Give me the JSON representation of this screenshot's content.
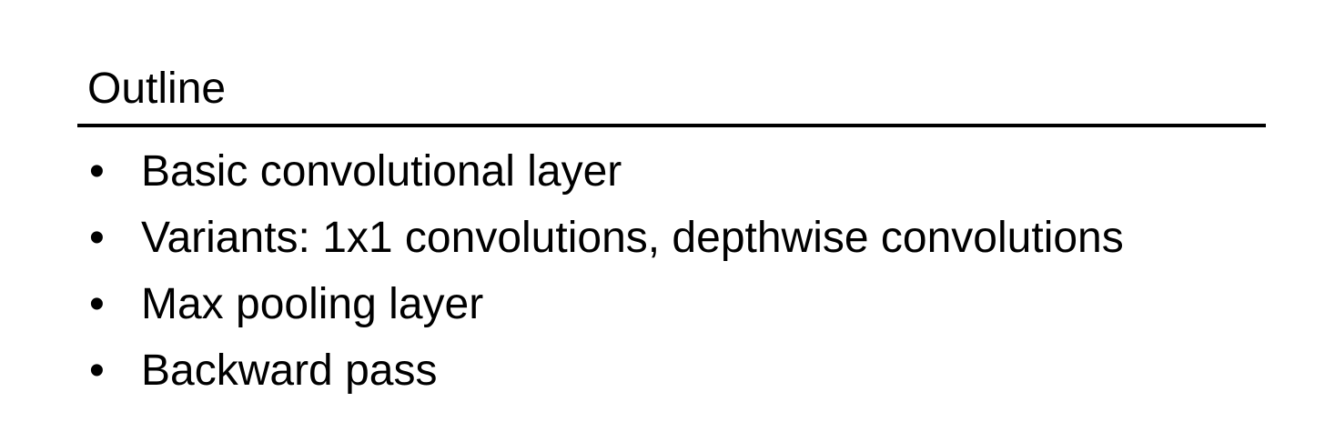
{
  "slide": {
    "title": "Outline",
    "bullet_symbol": "•",
    "bullets": [
      "Basic convolutional layer",
      "Variants: 1x1 convolutions, depthwise convolutions",
      "Max pooling layer",
      "Backward pass"
    ]
  }
}
